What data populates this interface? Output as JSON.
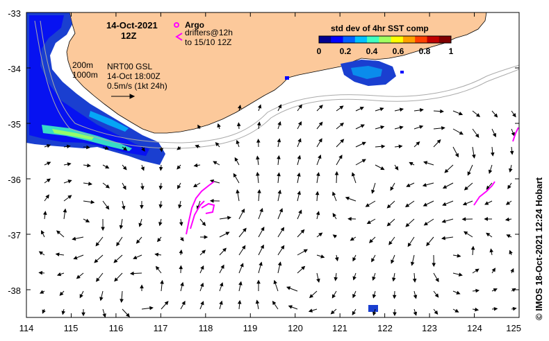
{
  "map": {
    "lon_range": [
      114,
      125
    ],
    "lat_range": [
      -38.5,
      -33
    ],
    "lon_ticks": [
      "114",
      "115",
      "116",
      "117",
      "118",
      "119",
      "120",
      "121",
      "122",
      "123",
      "124",
      "125"
    ],
    "lat_ticks": [
      "-33",
      "-34",
      "-35",
      "-36",
      "-37",
      "-38"
    ],
    "land_color": "#fcc99b",
    "arrow_color": "#000000",
    "drifter_color": "#ff00ff",
    "contour_color": "#aaaaaa"
  },
  "header": {
    "date": "14-Oct-2021",
    "time": "12Z"
  },
  "info": {
    "contour_200": "200m",
    "contour_1000": "1000m",
    "product": "NRT00 GSL",
    "product_time": "14-Oct 18:00Z",
    "scale": "0.5m/s (1kt 24h)"
  },
  "legend": {
    "argo_label": "Argo",
    "drifter_line1": "drifters@12h",
    "drifter_line2": "to 15/10 12Z"
  },
  "colorbar": {
    "title": "std dev of 4hr SST comp",
    "ticks": [
      "0",
      "0.2",
      "0.4",
      "0.6",
      "0.8",
      "1"
    ],
    "colors": [
      "#00008f",
      "#0000ff",
      "#0060ff",
      "#00c0ff",
      "#40ffc0",
      "#a0ff60",
      "#ffff00",
      "#ffa000",
      "#ff4000",
      "#c00000",
      "#800000"
    ]
  },
  "credit": "© IMOS 18-Oct-2021 12:24 Hobart"
}
